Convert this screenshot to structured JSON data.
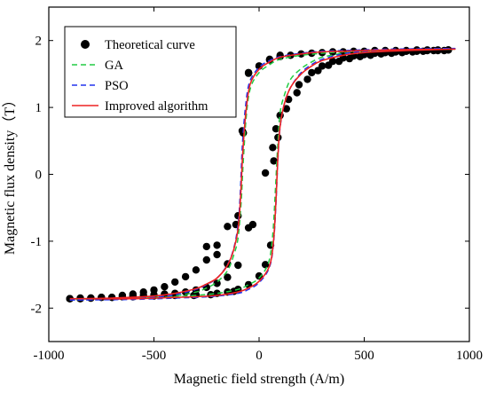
{
  "chart_data": {
    "type": "line",
    "xlabel": "Magnetic field strength (A/m)",
    "ylabel": "Magnetic flux density（T）",
    "xlim": [
      -1000,
      1000
    ],
    "ylim": [
      -2.5,
      2.5
    ],
    "xticks": [
      -1000,
      -500,
      0,
      500,
      1000
    ],
    "yticks": [
      -2,
      -1,
      0,
      1,
      2
    ],
    "xtick_labels": [
      "-1000",
      "-500",
      "0",
      "500",
      "1000"
    ],
    "ytick_labels": [
      "-2",
      "-1",
      "0",
      "1",
      "2"
    ],
    "grid": false,
    "legend_position": "top-left",
    "series": [
      {
        "name": "Theoretical curve",
        "style": "markers",
        "color": "#000000",
        "points": [
          [
            -900,
            -1.86
          ],
          [
            -850,
            -1.86
          ],
          [
            -800,
            -1.85
          ],
          [
            -750,
            -1.84
          ],
          [
            -700,
            -1.84
          ],
          [
            -650,
            -1.83
          ],
          [
            -600,
            -1.82
          ],
          [
            -550,
            -1.81
          ],
          [
            -500,
            -1.8
          ],
          [
            -450,
            -1.79
          ],
          [
            -400,
            -1.78
          ],
          [
            -350,
            -1.76
          ],
          [
            -300,
            -1.73
          ],
          [
            -250,
            -1.69
          ],
          [
            -200,
            -1.63
          ],
          [
            -150,
            -1.54
          ],
          [
            -100,
            -1.36
          ],
          [
            -50,
            -0.8
          ],
          [
            30,
            0.02
          ],
          [
            65,
            0.4
          ],
          [
            80,
            0.68
          ],
          [
            100,
            0.88
          ],
          [
            140,
            1.12
          ],
          [
            190,
            1.34
          ],
          [
            250,
            1.52
          ],
          [
            300,
            1.62
          ],
          [
            350,
            1.69
          ],
          [
            400,
            1.74
          ],
          [
            450,
            1.77
          ],
          [
            500,
            1.79
          ],
          [
            550,
            1.81
          ],
          [
            600,
            1.82
          ],
          [
            650,
            1.83
          ],
          [
            700,
            1.84
          ],
          [
            750,
            1.84
          ],
          [
            800,
            1.85
          ],
          [
            850,
            1.85
          ],
          [
            900,
            1.86
          ],
          [
            -120,
            -1.75
          ],
          [
            -230,
            -1.8
          ],
          [
            -310,
            -1.81
          ],
          [
            -30,
            -0.75
          ],
          [
            -50,
            1.52
          ],
          [
            -80,
            0.65
          ],
          [
            -150,
            -1.34
          ],
          [
            -200,
            -1.2
          ],
          [
            -250,
            -1.08
          ],
          [
            -50,
            1.51
          ],
          [
            0,
            1.62
          ],
          [
            50,
            1.72
          ],
          [
            100,
            1.78
          ],
          [
            -75,
            0.62
          ],
          [
            -110,
            -0.75
          ],
          [
            -900,
            -1.86
          ],
          [
            -850,
            -1.85
          ],
          [
            -800,
            -1.85
          ],
          [
            -650,
            -1.81
          ],
          [
            -600,
            -1.79
          ],
          [
            -550,
            -1.76
          ],
          [
            -500,
            -1.73
          ],
          [
            -450,
            -1.68
          ],
          [
            -400,
            -1.61
          ],
          [
            -350,
            -1.53
          ],
          [
            -300,
            -1.43
          ],
          [
            -250,
            -1.28
          ],
          [
            -200,
            -1.06
          ],
          [
            -150,
            -0.78
          ],
          [
            -100,
            -0.62
          ],
          [
            -75,
            0.62
          ],
          [
            -50,
            1.52
          ],
          [
            0,
            1.62
          ],
          [
            50,
            1.71
          ],
          [
            100,
            1.76
          ],
          [
            150,
            1.78
          ],
          [
            200,
            1.8
          ],
          [
            250,
            1.81
          ],
          [
            300,
            1.82
          ],
          [
            350,
            1.83
          ],
          [
            400,
            1.83
          ],
          [
            450,
            1.84
          ],
          [
            500,
            1.84
          ],
          [
            550,
            1.85
          ],
          [
            600,
            1.85
          ],
          [
            650,
            1.85
          ],
          [
            700,
            1.85
          ],
          [
            750,
            1.86
          ],
          [
            800,
            1.86
          ],
          [
            850,
            1.86
          ],
          [
            900,
            1.86
          ],
          [
            -900,
            -1.86
          ],
          [
            -850,
            -1.86
          ],
          [
            -750,
            -1.84
          ],
          [
            -700,
            -1.84
          ],
          [
            -600,
            -1.83
          ],
          [
            -500,
            -1.82
          ],
          [
            -400,
            -1.81
          ],
          [
            -300,
            -1.8
          ],
          [
            -200,
            -1.78
          ],
          [
            -150,
            -1.76
          ],
          [
            -100,
            -1.72
          ],
          [
            -50,
            -1.65
          ],
          [
            0,
            -1.52
          ],
          [
            30,
            -1.35
          ],
          [
            55,
            -1.06
          ],
          [
            70,
            0.2
          ],
          [
            90,
            0.55
          ],
          [
            130,
            0.98
          ],
          [
            180,
            1.22
          ],
          [
            230,
            1.42
          ],
          [
            280,
            1.55
          ],
          [
            330,
            1.63
          ],
          [
            380,
            1.69
          ],
          [
            430,
            1.73
          ],
          [
            480,
            1.76
          ],
          [
            530,
            1.78
          ],
          [
            580,
            1.8
          ],
          [
            630,
            1.81
          ],
          [
            680,
            1.82
          ],
          [
            730,
            1.83
          ],
          [
            780,
            1.84
          ],
          [
            830,
            1.85
          ],
          [
            880,
            1.85
          ]
        ]
      },
      {
        "name": "GA",
        "style": "dashed",
        "color": "#22cc44",
        "points": [
          [
            -900,
            -1.87
          ],
          [
            -700,
            -1.86
          ],
          [
            -500,
            -1.84
          ],
          [
            -400,
            -1.82
          ],
          [
            -300,
            -1.76
          ],
          [
            -250,
            -1.7
          ],
          [
            -200,
            -1.61
          ],
          [
            -150,
            -1.44
          ],
          [
            -120,
            -1.2
          ],
          [
            -100,
            -0.95
          ],
          [
            -85,
            -0.4
          ],
          [
            -75,
            0.2
          ],
          [
            -60,
            0.9
          ],
          [
            -40,
            1.3
          ],
          [
            0,
            1.52
          ],
          [
            50,
            1.64
          ],
          [
            100,
            1.72
          ],
          [
            200,
            1.78
          ],
          [
            300,
            1.81
          ],
          [
            400,
            1.83
          ],
          [
            600,
            1.85
          ],
          [
            900,
            1.87
          ],
          [
            900,
            1.87
          ],
          [
            700,
            1.86
          ],
          [
            500,
            1.84
          ],
          [
            400,
            1.81
          ],
          [
            300,
            1.75
          ],
          [
            250,
            1.68
          ],
          [
            200,
            1.58
          ],
          [
            150,
            1.42
          ],
          [
            120,
            1.18
          ],
          [
            100,
            0.92
          ],
          [
            88,
            0.4
          ],
          [
            78,
            -0.2
          ],
          [
            65,
            -0.9
          ],
          [
            45,
            -1.32
          ],
          [
            0,
            -1.55
          ],
          [
            -50,
            -1.65
          ],
          [
            -100,
            -1.72
          ],
          [
            -200,
            -1.78
          ],
          [
            -300,
            -1.81
          ],
          [
            -400,
            -1.83
          ],
          [
            -600,
            -1.85
          ],
          [
            -900,
            -1.87
          ]
        ]
      },
      {
        "name": "PSO",
        "style": "dashed",
        "color": "#2233ee",
        "points": [
          [
            -900,
            -1.88
          ],
          [
            -700,
            -1.87
          ],
          [
            -500,
            -1.84
          ],
          [
            -400,
            -1.8
          ],
          [
            -300,
            -1.72
          ],
          [
            -250,
            -1.65
          ],
          [
            -200,
            -1.55
          ],
          [
            -150,
            -1.35
          ],
          [
            -120,
            -1.1
          ],
          [
            -100,
            -0.75
          ],
          [
            -90,
            -0.3
          ],
          [
            -80,
            0.4
          ],
          [
            -65,
            1.0
          ],
          [
            -45,
            1.38
          ],
          [
            0,
            1.6
          ],
          [
            50,
            1.7
          ],
          [
            100,
            1.76
          ],
          [
            200,
            1.81
          ],
          [
            300,
            1.84
          ],
          [
            400,
            1.85
          ],
          [
            600,
            1.87
          ],
          [
            900,
            1.88
          ],
          [
            900,
            1.88
          ],
          [
            700,
            1.87
          ],
          [
            500,
            1.84
          ],
          [
            400,
            1.8
          ],
          [
            300,
            1.72
          ],
          [
            250,
            1.64
          ],
          [
            200,
            1.52
          ],
          [
            150,
            1.3
          ],
          [
            120,
            1.05
          ],
          [
            100,
            0.7
          ],
          [
            90,
            0.25
          ],
          [
            80,
            -0.45
          ],
          [
            68,
            -1.05
          ],
          [
            48,
            -1.4
          ],
          [
            0,
            -1.62
          ],
          [
            -50,
            -1.72
          ],
          [
            -100,
            -1.78
          ],
          [
            -200,
            -1.82
          ],
          [
            -300,
            -1.84
          ],
          [
            -400,
            -1.85
          ],
          [
            -600,
            -1.87
          ],
          [
            -900,
            -1.88
          ]
        ]
      },
      {
        "name": "Improved algorithm",
        "style": "solid",
        "color": "#ee2222",
        "points": [
          [
            -900,
            -1.86
          ],
          [
            -700,
            -1.85
          ],
          [
            -500,
            -1.82
          ],
          [
            -400,
            -1.78
          ],
          [
            -300,
            -1.71
          ],
          [
            -250,
            -1.64
          ],
          [
            -200,
            -1.55
          ],
          [
            -150,
            -1.36
          ],
          [
            -120,
            -1.12
          ],
          [
            -100,
            -0.82
          ],
          [
            -88,
            -0.35
          ],
          [
            -78,
            0.3
          ],
          [
            -62,
            0.95
          ],
          [
            -42,
            1.35
          ],
          [
            0,
            1.57
          ],
          [
            50,
            1.68
          ],
          [
            100,
            1.75
          ],
          [
            200,
            1.8
          ],
          [
            300,
            1.83
          ],
          [
            400,
            1.84
          ],
          [
            600,
            1.86
          ],
          [
            900,
            1.87
          ],
          [
            900,
            1.87
          ],
          [
            700,
            1.85
          ],
          [
            500,
            1.82
          ],
          [
            400,
            1.78
          ],
          [
            300,
            1.7
          ],
          [
            250,
            1.62
          ],
          [
            200,
            1.5
          ],
          [
            150,
            1.3
          ],
          [
            120,
            1.05
          ],
          [
            100,
            0.72
          ],
          [
            90,
            0.28
          ],
          [
            80,
            -0.4
          ],
          [
            68,
            -1.02
          ],
          [
            48,
            -1.38
          ],
          [
            0,
            -1.6
          ],
          [
            -50,
            -1.7
          ],
          [
            -100,
            -1.76
          ],
          [
            -200,
            -1.81
          ],
          [
            -300,
            -1.83
          ],
          [
            -400,
            -1.84
          ],
          [
            -600,
            -1.86
          ],
          [
            -900,
            -1.86
          ]
        ]
      }
    ]
  }
}
